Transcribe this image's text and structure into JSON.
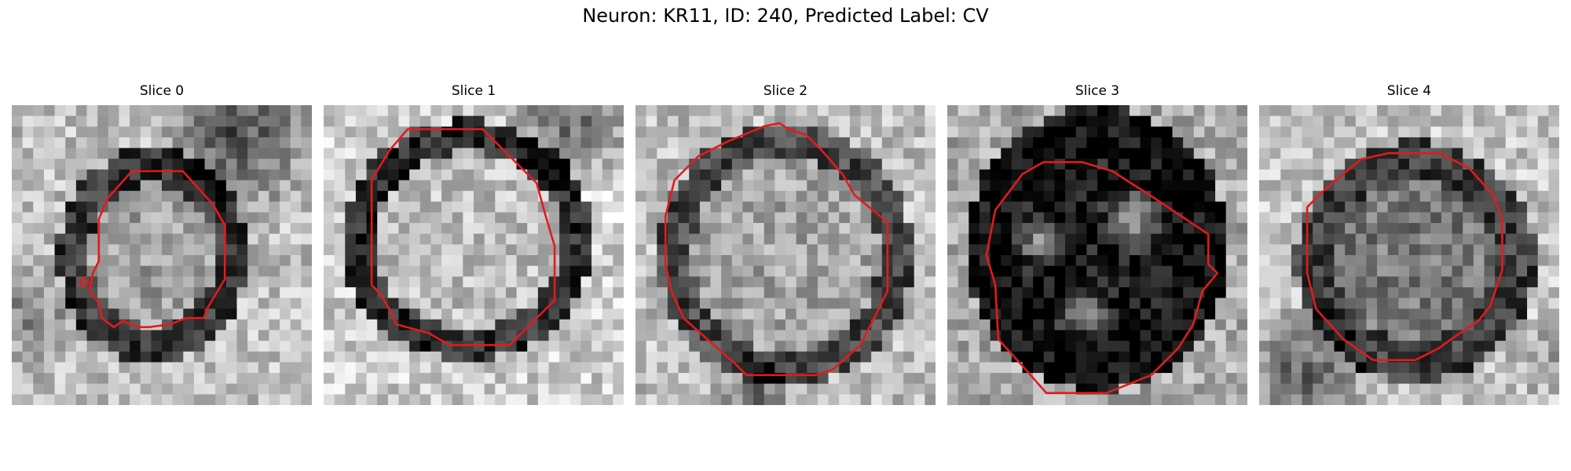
{
  "title": "Neuron: KR11, ID: 240, Predicted Label: CV",
  "outline_color": "#e41a1c",
  "panels": [
    {
      "label": "Slice 0"
    },
    {
      "label": "Slice 1"
    },
    {
      "label": "Slice 2"
    },
    {
      "label": "Slice 3"
    },
    {
      "label": "Slice 4"
    }
  ]
}
